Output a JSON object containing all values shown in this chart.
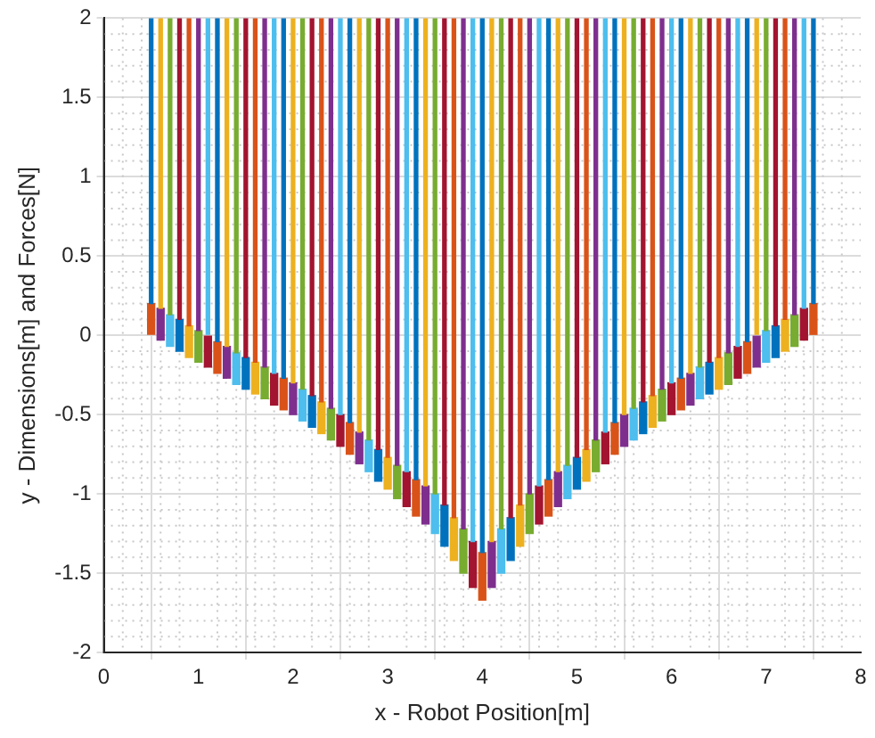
{
  "chart_data": {
    "type": "bar",
    "xlabel": "x - Robot Position[m]",
    "ylabel": "y - Dimensions[m] and Forces[N]",
    "x": [
      0.5,
      0.6,
      0.7,
      0.8,
      0.9,
      1.0,
      1.1,
      1.2,
      1.3,
      1.4,
      1.5,
      1.6,
      1.7,
      1.8,
      1.9,
      2.0,
      2.1,
      2.2,
      2.3,
      2.4,
      2.5,
      2.6,
      2.7,
      2.8,
      2.9,
      3.0,
      3.1,
      3.2,
      3.3,
      3.4,
      3.5,
      3.6,
      3.7,
      3.8,
      3.9,
      4.0,
      4.1,
      4.2,
      4.3,
      4.4,
      4.5,
      4.6,
      4.7,
      4.8,
      4.9,
      5.0,
      5.1,
      5.2,
      5.3,
      5.4,
      5.5,
      5.6,
      5.7,
      5.8,
      5.9,
      6.0,
      6.1,
      6.2,
      6.3,
      6.4,
      6.5,
      6.6,
      6.7,
      6.8,
      6.9,
      7.0,
      7.1,
      7.2,
      7.3,
      7.4,
      7.5
    ],
    "series": [
      {
        "base": [
          0,
          -0.03,
          -0.07,
          -0.1,
          -0.14,
          -0.17,
          -0.2,
          -0.24,
          -0.27,
          -0.31,
          -0.34,
          -0.37,
          -0.4,
          -0.44,
          -0.47,
          -0.5,
          -0.54,
          -0.58,
          -0.62,
          -0.66,
          -0.7,
          -0.75,
          -0.81,
          -0.86,
          -0.92,
          -0.97,
          -1.03,
          -1.08,
          -1.14,
          -1.19,
          -1.25,
          -1.33,
          -1.42,
          -1.5,
          -1.59,
          -1.67,
          -1.59,
          -1.5,
          -1.42,
          -1.33,
          -1.25,
          -1.19,
          -1.14,
          -1.08,
          -1.03,
          -0.97,
          -0.92,
          -0.86,
          -0.81,
          -0.75,
          -0.7,
          -0.66,
          -0.62,
          -0.58,
          -0.54,
          -0.5,
          -0.47,
          -0.44,
          -0.4,
          -0.37,
          -0.34,
          -0.31,
          -0.27,
          -0.24,
          -0.2,
          -0.17,
          -0.14,
          -0.1,
          -0.07,
          -0.03,
          0
        ],
        "values": [
          0.2,
          0.2,
          0.2,
          0.2,
          0.2,
          0.2,
          0.2,
          0.2,
          0.2,
          0.2,
          0.2,
          0.2,
          0.2,
          0.2,
          0.2,
          0.2,
          0.2,
          0.2,
          0.2,
          0.2,
          0.2,
          0.2,
          0.2,
          0.2,
          0.2,
          0.2,
          0.21,
          0.22,
          0.23,
          0.24,
          0.25,
          0.26,
          0.27,
          0.28,
          0.29,
          0.3,
          0.29,
          0.28,
          0.27,
          0.26,
          0.25,
          0.24,
          0.23,
          0.22,
          0.21,
          0.2,
          0.2,
          0.2,
          0.2,
          0.2,
          0.2,
          0.2,
          0.2,
          0.2,
          0.2,
          0.2,
          0.2,
          0.2,
          0.2,
          0.2,
          0.2,
          0.2,
          0.2,
          0.2,
          0.2,
          0.2,
          0.2,
          0.2,
          0.2,
          0.2,
          0.2
        ],
        "colors": [
          "#d95319",
          "#7e2f8e",
          "#4dbeee",
          "#0072bd",
          "#edb120",
          "#77ac30",
          "#a2142f",
          "#d95319",
          "#7e2f8e",
          "#4dbeee",
          "#0072bd",
          "#edb120",
          "#77ac30",
          "#a2142f",
          "#d95319",
          "#7e2f8e",
          "#4dbeee",
          "#0072bd",
          "#edb120",
          "#77ac30",
          "#a2142f",
          "#d95319",
          "#7e2f8e",
          "#4dbeee",
          "#0072bd",
          "#edb120",
          "#77ac30",
          "#a2142f",
          "#d95319",
          "#7e2f8e",
          "#4dbeee",
          "#0072bd",
          "#edb120",
          "#77ac30",
          "#a2142f",
          "#d95319",
          "#7e2f8e",
          "#4dbeee",
          "#0072bd",
          "#edb120",
          "#77ac30",
          "#a2142f",
          "#d95319",
          "#7e2f8e",
          "#4dbeee",
          "#0072bd",
          "#edb120",
          "#77ac30",
          "#a2142f",
          "#d95319",
          "#7e2f8e",
          "#4dbeee",
          "#0072bd",
          "#edb120",
          "#77ac30",
          "#a2142f",
          "#d95319",
          "#7e2f8e",
          "#4dbeee",
          "#0072bd",
          "#edb120",
          "#77ac30",
          "#a2142f",
          "#d95319",
          "#7e2f8e",
          "#4dbeee",
          "#0072bd",
          "#edb120",
          "#77ac30",
          "#a2142f",
          "#d95319"
        ]
      },
      {
        "base": [
          0.2,
          0.17,
          0.13,
          0.1,
          0.06,
          0.03,
          0,
          -0.04,
          -0.07,
          -0.11,
          -0.14,
          -0.17,
          -0.2,
          -0.24,
          -0.27,
          -0.3,
          -0.34,
          -0.38,
          -0.42,
          -0.46,
          -0.5,
          -0.55,
          -0.61,
          -0.66,
          -0.72,
          -0.77,
          -0.82,
          -0.86,
          -0.91,
          -0.95,
          -1.0,
          -1.07,
          -1.15,
          -1.22,
          -1.3,
          -1.37,
          -1.3,
          -1.22,
          -1.15,
          -1.07,
          -1.0,
          -0.95,
          -0.91,
          -0.86,
          -0.82,
          -0.77,
          -0.72,
          -0.66,
          -0.61,
          -0.55,
          -0.5,
          -0.46,
          -0.42,
          -0.38,
          -0.34,
          -0.3,
          -0.27,
          -0.24,
          -0.2,
          -0.17,
          -0.14,
          -0.11,
          -0.07,
          -0.04,
          0,
          0.03,
          0.06,
          0.1,
          0.13,
          0.17,
          0.2
        ],
        "values": [
          1.8,
          1.83,
          1.87,
          1.9,
          1.94,
          1.97,
          2.0,
          2.04,
          2.07,
          2.11,
          2.14,
          2.17,
          2.2,
          2.24,
          2.27,
          2.3,
          2.34,
          2.38,
          2.42,
          2.46,
          2.5,
          2.55,
          2.61,
          2.66,
          2.72,
          2.77,
          2.82,
          2.86,
          2.91,
          2.95,
          3.0,
          3.07,
          3.15,
          3.22,
          3.3,
          3.37,
          3.3,
          3.22,
          3.15,
          3.07,
          3.0,
          2.95,
          2.91,
          2.86,
          2.82,
          2.77,
          2.72,
          2.66,
          2.61,
          2.55,
          2.5,
          2.46,
          2.42,
          2.38,
          2.34,
          2.3,
          2.27,
          2.24,
          2.2,
          2.17,
          2.14,
          2.11,
          2.07,
          2.04,
          2.0,
          1.97,
          1.94,
          1.9,
          1.87,
          1.83,
          1.8
        ],
        "colors": [
          "#0072bd",
          "#edb120",
          "#77ac30",
          "#a2142f",
          "#d95319",
          "#7e2f8e",
          "#4dbeee",
          "#0072bd",
          "#edb120",
          "#77ac30",
          "#a2142f",
          "#d95319",
          "#7e2f8e",
          "#4dbeee",
          "#0072bd",
          "#edb120",
          "#77ac30",
          "#a2142f",
          "#d95319",
          "#7e2f8e",
          "#4dbeee",
          "#0072bd",
          "#edb120",
          "#77ac30",
          "#a2142f",
          "#d95319",
          "#7e2f8e",
          "#4dbeee",
          "#0072bd",
          "#edb120",
          "#77ac30",
          "#a2142f",
          "#d95319",
          "#7e2f8e",
          "#4dbeee",
          "#0072bd",
          "#edb120",
          "#77ac30",
          "#a2142f",
          "#d95319",
          "#7e2f8e",
          "#4dbeee",
          "#0072bd",
          "#edb120",
          "#77ac30",
          "#a2142f",
          "#d95319",
          "#7e2f8e",
          "#4dbeee",
          "#0072bd",
          "#edb120",
          "#77ac30",
          "#a2142f",
          "#d95319",
          "#7e2f8e",
          "#4dbeee",
          "#0072bd",
          "#edb120",
          "#77ac30",
          "#a2142f",
          "#d95319",
          "#7e2f8e",
          "#4dbeee",
          "#0072bd",
          "#edb120",
          "#77ac30",
          "#a2142f",
          "#d95319",
          "#7e2f8e",
          "#4dbeee",
          "#0072bd"
        ]
      }
    ],
    "xlim": [
      0,
      8
    ],
    "xticks": [
      0,
      1,
      2,
      3,
      4,
      5,
      6,
      7,
      8
    ],
    "ylim": [
      -2,
      2
    ],
    "yticks": [
      -2,
      -1.5,
      -1,
      -0.5,
      0,
      0.5,
      1,
      1.5,
      2
    ],
    "grid": true,
    "legend": false
  }
}
